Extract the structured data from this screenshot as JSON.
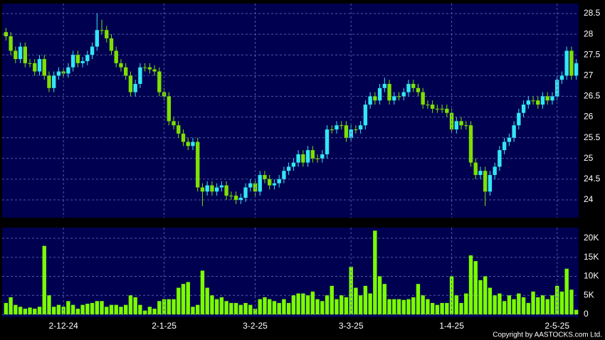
{
  "chart_data": [
    {
      "type": "candlestick",
      "open": [
        28.05,
        27.95,
        27.6,
        27.4,
        27.7,
        27.3,
        27.3,
        27.1,
        27.4,
        27.0,
        26.7,
        27.0,
        27.1,
        27.05,
        27.2,
        27.5,
        27.3,
        27.35,
        27.5,
        27.7,
        28.1,
        28.1,
        27.9,
        27.6,
        27.3,
        27.2,
        27.0,
        26.6,
        26.8,
        27.2,
        27.2,
        27.15,
        27.1,
        26.6,
        26.5,
        25.9,
        25.8,
        25.6,
        25.4,
        25.3,
        25.4,
        24.3,
        24.2,
        24.35,
        24.2,
        24.3,
        24.35,
        24.1,
        24.1,
        24.0,
        24.05,
        24.3,
        24.4,
        24.2,
        24.6,
        24.5,
        24.35,
        24.4,
        24.5,
        24.7,
        24.8,
        24.9,
        25.1,
        24.9,
        25.2,
        25.0,
        25.0,
        25.1,
        25.7,
        25.7,
        25.8,
        25.8,
        25.5,
        25.7,
        25.7,
        25.8,
        26.3,
        26.5,
        26.4,
        26.7,
        26.8,
        26.4,
        26.5,
        26.5,
        26.6,
        26.8,
        26.7,
        26.6,
        26.3,
        26.3,
        26.2,
        26.2,
        26.2,
        26.1,
        25.7,
        25.9,
        25.8,
        25.8,
        24.9,
        24.6,
        24.7,
        24.2,
        24.6,
        24.8,
        25.2,
        25.4,
        25.5,
        25.8,
        26.1,
        26.3,
        26.4,
        26.4,
        26.3,
        26.5,
        26.4,
        26.5,
        26.9,
        27.0,
        27.6,
        27.0
      ],
      "high": [
        28.15,
        28.05,
        27.7,
        27.8,
        27.8,
        27.4,
        27.4,
        27.5,
        27.5,
        27.1,
        27.1,
        27.2,
        27.2,
        27.3,
        27.6,
        27.6,
        27.45,
        27.6,
        27.8,
        28.5,
        28.35,
        28.2,
        28.0,
        27.7,
        27.4,
        27.3,
        27.1,
        26.9,
        27.3,
        27.3,
        27.3,
        27.25,
        27.2,
        26.7,
        26.6,
        26.0,
        25.9,
        25.7,
        25.5,
        25.5,
        25.5,
        24.4,
        24.45,
        24.45,
        24.4,
        24.45,
        24.45,
        24.2,
        24.2,
        24.15,
        24.4,
        24.5,
        24.5,
        24.7,
        24.7,
        24.6,
        24.5,
        24.6,
        24.8,
        24.9,
        25.0,
        25.2,
        25.2,
        25.3,
        25.3,
        25.1,
        25.2,
        25.8,
        25.8,
        25.9,
        25.9,
        25.9,
        25.8,
        25.8,
        25.9,
        26.4,
        26.6,
        26.6,
        26.8,
        26.95,
        26.9,
        26.6,
        26.6,
        26.7,
        26.9,
        26.9,
        26.8,
        26.7,
        26.4,
        26.4,
        26.3,
        26.3,
        26.3,
        26.2,
        26.0,
        26.0,
        25.9,
        25.9,
        25.0,
        24.8,
        24.8,
        24.7,
        24.9,
        25.3,
        25.5,
        25.6,
        25.9,
        26.2,
        26.4,
        26.5,
        26.5,
        26.5,
        26.6,
        26.6,
        26.6,
        27.0,
        27.1,
        27.7,
        27.7,
        27.4
      ],
      "low": [
        27.85,
        27.5,
        27.3,
        27.3,
        27.2,
        27.2,
        27.0,
        27.0,
        26.9,
        26.6,
        26.6,
        26.9,
        26.95,
        26.95,
        27.1,
        27.2,
        27.2,
        27.25,
        27.4,
        27.6,
        28.0,
        27.8,
        27.5,
        27.2,
        27.1,
        26.9,
        26.5,
        26.5,
        26.7,
        27.1,
        27.05,
        27.0,
        26.5,
        26.4,
        25.8,
        25.7,
        25.5,
        25.3,
        25.2,
        25.2,
        24.2,
        23.85,
        24.1,
        24.1,
        24.1,
        24.2,
        24.0,
        24.0,
        23.9,
        23.9,
        23.95,
        24.2,
        24.1,
        24.1,
        24.4,
        24.25,
        24.25,
        24.3,
        24.4,
        24.6,
        24.7,
        24.8,
        24.8,
        24.8,
        24.9,
        24.9,
        24.9,
        25.0,
        25.6,
        25.6,
        25.7,
        25.4,
        25.4,
        25.6,
        25.6,
        25.7,
        26.2,
        26.3,
        26.3,
        26.6,
        26.3,
        26.3,
        26.4,
        26.4,
        26.5,
        26.6,
        26.5,
        26.2,
        26.2,
        26.1,
        26.1,
        26.1,
        26.0,
        25.6,
        25.6,
        25.7,
        25.7,
        24.8,
        24.5,
        24.5,
        23.85,
        24.1,
        24.5,
        24.7,
        25.1,
        25.3,
        25.4,
        25.7,
        26.0,
        26.2,
        26.3,
        26.2,
        26.2,
        26.3,
        26.3,
        26.4,
        26.8,
        26.9,
        26.9,
        26.9
      ],
      "close": [
        27.95,
        27.6,
        27.4,
        27.7,
        27.3,
        27.3,
        27.1,
        27.4,
        27.0,
        26.7,
        27.0,
        27.1,
        27.05,
        27.2,
        27.5,
        27.3,
        27.35,
        27.5,
        27.7,
        28.1,
        28.1,
        27.9,
        27.6,
        27.3,
        27.2,
        27.0,
        26.6,
        26.8,
        27.2,
        27.2,
        27.15,
        27.1,
        26.6,
        26.5,
        25.9,
        25.8,
        25.6,
        25.4,
        25.3,
        25.4,
        24.3,
        24.2,
        24.35,
        24.2,
        24.3,
        24.35,
        24.1,
        24.1,
        24.0,
        24.05,
        24.3,
        24.4,
        24.2,
        24.6,
        24.5,
        24.35,
        24.4,
        24.5,
        24.7,
        24.8,
        24.9,
        25.1,
        24.9,
        25.2,
        25.0,
        25.0,
        25.1,
        25.7,
        25.7,
        25.8,
        25.8,
        25.5,
        25.7,
        25.7,
        25.8,
        26.3,
        26.5,
        26.4,
        26.7,
        26.8,
        26.4,
        26.5,
        26.5,
        26.6,
        26.8,
        26.7,
        26.6,
        26.3,
        26.3,
        26.2,
        26.2,
        26.2,
        26.1,
        25.7,
        25.9,
        25.8,
        25.8,
        24.9,
        24.6,
        24.7,
        24.2,
        24.6,
        24.8,
        25.2,
        25.4,
        25.5,
        25.8,
        26.1,
        26.3,
        26.4,
        26.4,
        26.3,
        26.5,
        26.4,
        26.5,
        26.9,
        27.0,
        27.6,
        27.0,
        27.3
      ],
      "up_color": "#33e6f5",
      "down_color": "#7ee000",
      "ylim": [
        23.57,
        28.74
      ],
      "yticks": [
        24,
        24.5,
        25,
        25.5,
        26,
        26.5,
        27,
        27.5,
        28,
        28.5
      ],
      "grid": true
    },
    {
      "type": "bar",
      "categories": [
        null,
        null,
        null,
        null,
        null,
        null,
        null,
        null,
        null,
        null,
        null,
        null,
        "2-12-24",
        null,
        null,
        null,
        null,
        null,
        null,
        null,
        null,
        null,
        null,
        null,
        null,
        null,
        null,
        null,
        null,
        null,
        null,
        null,
        null,
        "2-1-25",
        null,
        null,
        null,
        null,
        null,
        null,
        null,
        null,
        null,
        null,
        null,
        null,
        null,
        null,
        null,
        null,
        null,
        null,
        "3-2-25",
        null,
        null,
        null,
        null,
        null,
        null,
        null,
        null,
        null,
        null,
        null,
        null,
        null,
        null,
        null,
        null,
        null,
        null,
        null,
        "3-3-25",
        null,
        null,
        null,
        null,
        null,
        null,
        null,
        null,
        null,
        null,
        null,
        null,
        null,
        null,
        null,
        null,
        null,
        null,
        null,
        null,
        "1-4-25",
        null,
        null,
        null,
        null,
        null,
        null,
        null,
        null,
        null,
        null,
        null,
        null,
        null,
        null,
        null,
        null,
        null,
        null,
        null,
        null,
        null,
        "2-5-25",
        null,
        null,
        null,
        null
      ],
      "values": [
        3000,
        4500,
        2500,
        2000,
        1500,
        1800,
        1500,
        2000,
        18000,
        5000,
        2000,
        2500,
        2000,
        3500,
        2500,
        1500,
        2500,
        2800,
        3000,
        3500,
        3500,
        2000,
        2500,
        2500,
        2000,
        2500,
        5000,
        4500,
        2500,
        1000,
        2000,
        1500,
        3500,
        4000,
        4000,
        4000,
        7000,
        8000,
        8500,
        2000,
        2500,
        11500,
        7000,
        5000,
        4000,
        4500,
        3500,
        3000,
        3000,
        2500,
        3000,
        2500,
        1500,
        4000,
        4500,
        4000,
        3500,
        3000,
        4000,
        3000,
        5000,
        5500,
        5500,
        5000,
        6000,
        4000,
        3500,
        5000,
        7500,
        4000,
        5000,
        4500,
        12500,
        7000,
        5000,
        7500,
        5500,
        22000,
        10000,
        8000,
        4000,
        4000,
        4000,
        3800,
        4000,
        4500,
        8000,
        5000,
        4000,
        3000,
        2500,
        3000,
        3000,
        10000,
        5000,
        3000,
        5500,
        15500,
        14000,
        9000,
        10000,
        7000,
        5000,
        5500,
        3500,
        5000,
        4000,
        5500,
        4500,
        3000,
        6000,
        4500,
        5000,
        4000,
        5000,
        7500,
        6000,
        12000,
        6500,
        1200
      ],
      "color": "#7cfc00",
      "ylim": [
        0,
        22800
      ],
      "yticks": [
        0,
        {
          "value": 5000,
          "label": "5K"
        },
        {
          "value": 10000,
          "label": "10K"
        },
        {
          "value": 15000,
          "label": "15K"
        },
        {
          "value": 20000,
          "label": "20K"
        }
      ],
      "grid": true
    }
  ],
  "copyright": "Copyright by AASTOCKS.com Ltd."
}
